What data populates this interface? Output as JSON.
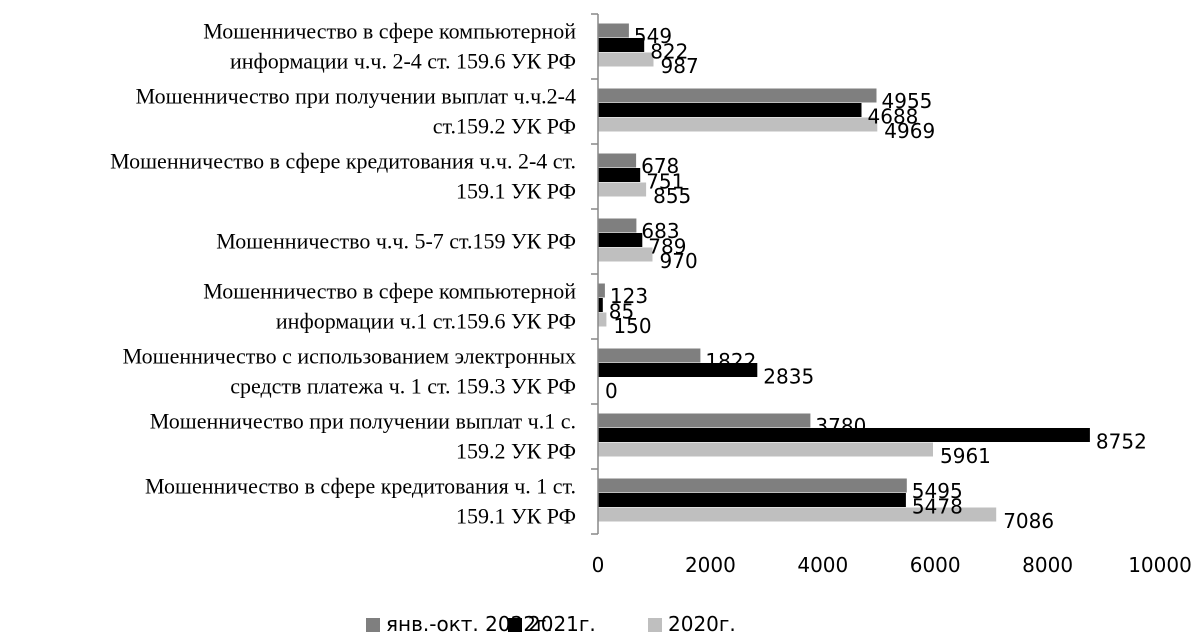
{
  "chart_data": {
    "type": "bar",
    "orientation": "horizontal",
    "categories": [
      [
        "Мошенничество в сфере компьютерной",
        "информации ч.ч. 2-4 ст. 159.6 УК РФ"
      ],
      [
        "Мошенничество при получении выплат ч.ч.2-4",
        "ст.159.2 УК РФ"
      ],
      [
        "Мошенничество в сфере кредитования ч.ч. 2-4 ст.",
        "159.1 УК РФ"
      ],
      [
        "Мошенничество ч.ч. 5-7 ст.159 УК РФ"
      ],
      [
        "Мошенничество в сфере компьютерной",
        "информации ч.1 ст.159.6 УК РФ"
      ],
      [
        "Мошенничество с использованием электронных",
        "средств платежа ч. 1 ст. 159.3 УК РФ"
      ],
      [
        "Мошенничество при получении выплат ч.1 с.",
        "159.2 УК РФ"
      ],
      [
        "Мошенничество в сфере кредитования ч. 1 ст.",
        "159.1 УК РФ"
      ]
    ],
    "series": [
      {
        "name": "янв.-окт. 2022г.",
        "color": "#7f7f7f",
        "values": [
          549,
          4955,
          678,
          683,
          123,
          1822,
          3780,
          5495
        ]
      },
      {
        "name": "2021г.",
        "color": "#000000",
        "values": [
          822,
          4688,
          751,
          789,
          85,
          2835,
          8752,
          5478
        ]
      },
      {
        "name": "2020г.",
        "color": "#bfbfbf",
        "values": [
          987,
          4969,
          855,
          970,
          150,
          0,
          5961,
          7086
        ]
      }
    ],
    "xlim": [
      0,
      10000
    ],
    "xticks": [
      "0",
      "2000",
      "4000",
      "6000",
      "8000",
      "10000"
    ],
    "grid": false,
    "legend": "bottom-center"
  }
}
